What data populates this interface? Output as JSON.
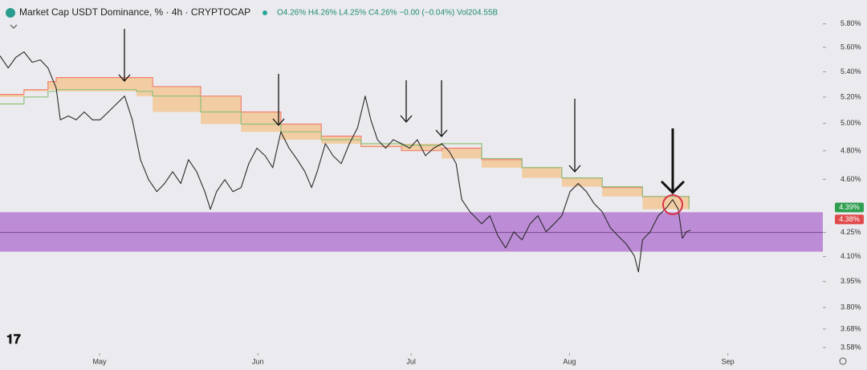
{
  "chart_data": {
    "type": "line",
    "title": "Market Cap USDT Dominance, % · 4h · CRYPTOCAP",
    "ohlc": "O4.26% H4.26% L4.25% C4.26% −0.00 (−0.04%) Vol204.55B",
    "log_scale": true,
    "grid": false,
    "xlim": [
      101.5,
      262.6
    ],
    "xticks": [
      {
        "value": 121,
        "label": "May"
      },
      {
        "value": 152,
        "label": "Jun"
      },
      {
        "value": 182,
        "label": "Jul"
      },
      {
        "value": 213,
        "label": "Aug"
      },
      {
        "value": 244,
        "label": "Sep"
      }
    ],
    "ylim": [
      3.55,
      6.01
    ],
    "yticks": [
      {
        "value": 5.8,
        "label": "5.80%"
      },
      {
        "value": 5.6,
        "label": "5.60%"
      },
      {
        "value": 5.4,
        "label": "5.40%"
      },
      {
        "value": 5.2,
        "label": "5.20%"
      },
      {
        "value": 5.0,
        "label": "5.00%"
      },
      {
        "value": 4.8,
        "label": "4.80%"
      },
      {
        "value": 4.6,
        "label": "4.60%"
      },
      {
        "value": 4.25,
        "label": "4.25%"
      },
      {
        "value": 4.1,
        "label": "4.10%"
      },
      {
        "value": 3.95,
        "label": "3.95%"
      },
      {
        "value": 3.8,
        "label": "3.80%"
      },
      {
        "value": 3.68,
        "label": "3.68%"
      },
      {
        "value": 3.58,
        "label": "3.58%"
      }
    ],
    "x": [
      101.5,
      103.1,
      104.6,
      106.2,
      107.8,
      109.4,
      110.9,
      112.5,
      113.3,
      114.9,
      116.4,
      118.0,
      119.6,
      121.1,
      122.7,
      124.3,
      125.9,
      127.4,
      129.0,
      130.6,
      132.2,
      133.7,
      135.3,
      136.9,
      138.4,
      140.0,
      141.6,
      142.7,
      143.9,
      145.5,
      147.1,
      148.7,
      150.2,
      151.8,
      153.4,
      154.9,
      156.5,
      158.1,
      159.7,
      161.2,
      162.5,
      163.6,
      165.2,
      166.7,
      168.3,
      169.9,
      171.5,
      173.0,
      174.1,
      175.4,
      177.0,
      178.5,
      180.1,
      181.7,
      183.2,
      184.8,
      186.4,
      188.0,
      189.5,
      190.8,
      191.9,
      193.5,
      195.8,
      197.4,
      199.0,
      200.5,
      202.1,
      203.7,
      205.3,
      206.8,
      208.4,
      210.0,
      211.5,
      213.1,
      214.7,
      216.3,
      217.8,
      219.4,
      221.0,
      222.5,
      224.1,
      225.7,
      226.5,
      227.3,
      228.8,
      230.4,
      232.0,
      233.2,
      234.3,
      235.1,
      235.9,
      236.7
    ],
    "series": [
      {
        "color": "#2b2b2b",
        "values": [
          5.53,
          5.431,
          5.517,
          5.563,
          5.477,
          5.497,
          5.431,
          5.271,
          5.027,
          5.056,
          5.027,
          5.086,
          5.027,
          5.027,
          5.086,
          5.147,
          5.208,
          5.027,
          4.737,
          4.598,
          4.517,
          4.571,
          4.653,
          4.571,
          4.737,
          4.653,
          4.517,
          4.399,
          4.517,
          4.598,
          4.517,
          4.544,
          4.709,
          4.819,
          4.765,
          4.681,
          4.938,
          4.819,
          4.737,
          4.653,
          4.544,
          4.653,
          4.851,
          4.765,
          4.709,
          4.851,
          4.967,
          5.208,
          5.027,
          4.88,
          4.819,
          4.88,
          4.851,
          4.819,
          4.88,
          4.765,
          4.819,
          4.851,
          4.793,
          4.709,
          4.463,
          4.383,
          4.305,
          4.357,
          4.228,
          4.153,
          4.254,
          4.203,
          4.305,
          4.357,
          4.254,
          4.305,
          4.357,
          4.517,
          4.571,
          4.517,
          4.437,
          4.383,
          4.28,
          4.228,
          4.178,
          4.104,
          4.007,
          4.203,
          4.254,
          4.357,
          4.41,
          4.463,
          4.399,
          4.213,
          4.254,
          4.264
        ]
      }
    ],
    "bands": {
      "x": [
        101.5,
        106.2,
        110.9,
        112.5,
        128.2,
        131.4,
        140.8,
        148.7,
        156.5,
        164.4,
        172.2,
        180.1,
        188.0,
        195.8,
        203.7,
        211.5,
        219.4,
        227.3,
        236.4
      ],
      "upper": {
        "color": "#f08070",
        "values": [
          5.221,
          5.258,
          5.322,
          5.354,
          5.354,
          5.283,
          5.208,
          5.086,
          4.995,
          4.906,
          4.83,
          4.801,
          4.819,
          4.737,
          4.681,
          4.61,
          4.544,
          4.484,
          4.421
        ]
      },
      "lower": {
        "color": "#8fc07a",
        "values": [
          5.147,
          5.201,
          5.245,
          5.258,
          5.245,
          5.208,
          5.086,
          4.995,
          4.938,
          4.88,
          4.851,
          4.84,
          4.851,
          4.745,
          4.681,
          4.61,
          4.55,
          4.484,
          4.399
        ]
      },
      "fill": "#f3c99a"
    },
    "zone": {
      "values": [
        4.13,
        4.38
      ],
      "color": "#b57bd1"
    },
    "level": 4.25,
    "price_tags": [
      {
        "value": 4.39,
        "label": "4.39%",
        "color": "#2e9e4f"
      },
      {
        "value": 4.38,
        "label": "4.38%",
        "color": "#e04b4b"
      }
    ]
  }
}
